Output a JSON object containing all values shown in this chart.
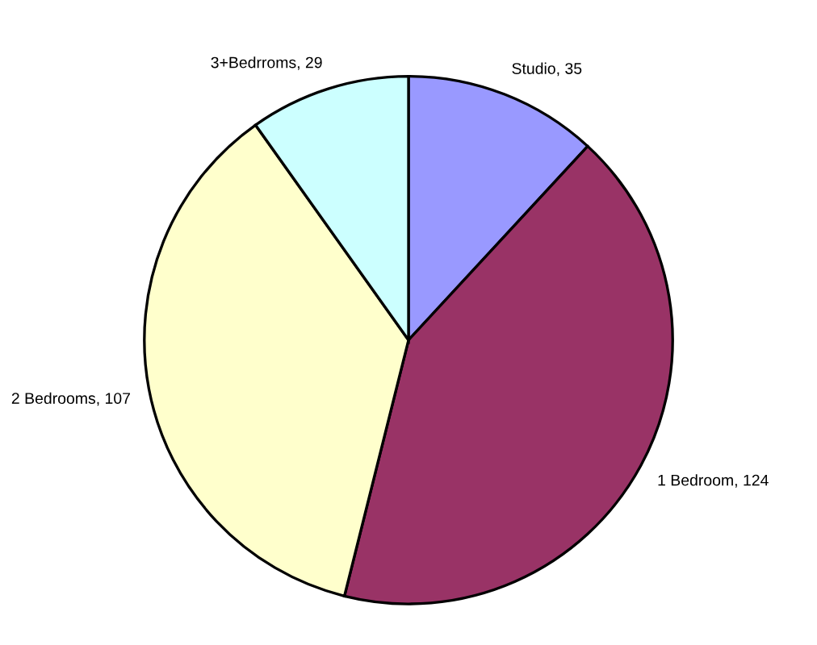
{
  "chart_data": {
    "type": "pie",
    "categories": [
      "Studio",
      "1 Bedroom",
      "2 Bedrooms",
      "3+Bedrroms"
    ],
    "values": [
      35,
      124,
      107,
      29
    ],
    "colors": [
      "#9999ff",
      "#993366",
      "#ffffcc",
      "#ccffff"
    ],
    "value_labels": [
      ", 35",
      ", 124",
      ", 107",
      ", 29"
    ]
  }
}
